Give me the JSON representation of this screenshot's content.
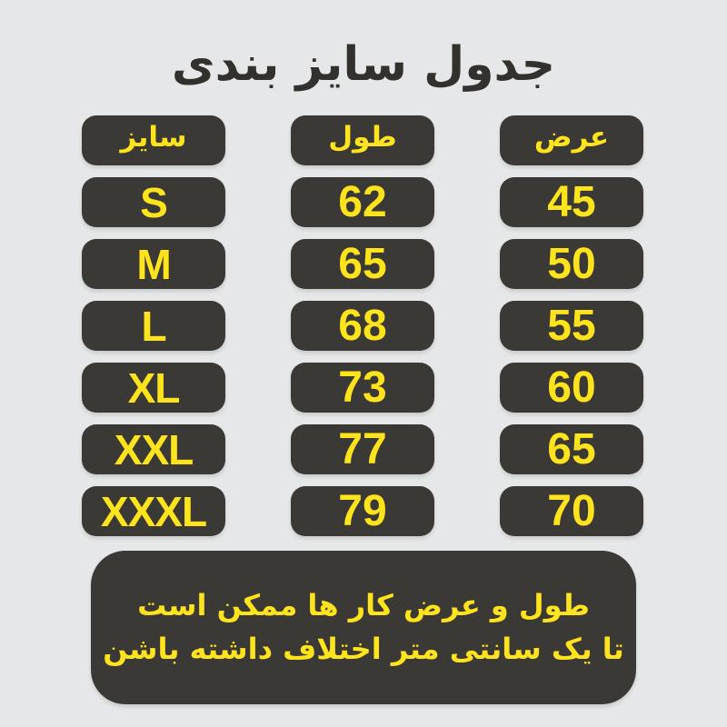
{
  "page": {
    "title": "جدول سایز بندی",
    "background_color": "#e6e7e8",
    "pill_color": "#3b3936",
    "text_yellow": "#ffe31d",
    "title_color": "#33312d"
  },
  "table": {
    "columns": [
      {
        "key": "size",
        "label": "سایز"
      },
      {
        "key": "length",
        "label": "طول"
      },
      {
        "key": "width",
        "label": "عرض"
      }
    ],
    "rows": [
      {
        "size": "S",
        "length": "62",
        "width": "45"
      },
      {
        "size": "M",
        "length": "65",
        "width": "50"
      },
      {
        "size": "L",
        "length": "68",
        "width": "55"
      },
      {
        "size": "XL",
        "length": "73",
        "width": "60"
      },
      {
        "size": "XXL",
        "length": "77",
        "width": "65"
      },
      {
        "size": "XXXL",
        "length": "79",
        "width": "70"
      }
    ]
  },
  "note": {
    "line1": "طول و عرض کار ها ممکن است",
    "line2": "تا یک سانتی متر اختلاف داشته باشن"
  },
  "chart_data": {
    "type": "table",
    "title": "جدول سایز بندی",
    "columns": [
      "سایز",
      "طول",
      "عرض"
    ],
    "rows": [
      [
        "S",
        62,
        45
      ],
      [
        "M",
        65,
        50
      ],
      [
        "L",
        68,
        55
      ],
      [
        "XL",
        73,
        60
      ],
      [
        "XXL",
        77,
        65
      ],
      [
        "XXXL",
        79,
        70
      ]
    ],
    "note": "طول و عرض کار ها ممکن است تا یک سانتی متر اختلاف داشته باشن",
    "layout": "three pill columns, RTL labels, dark pills with yellow bold text on light gray background"
  }
}
